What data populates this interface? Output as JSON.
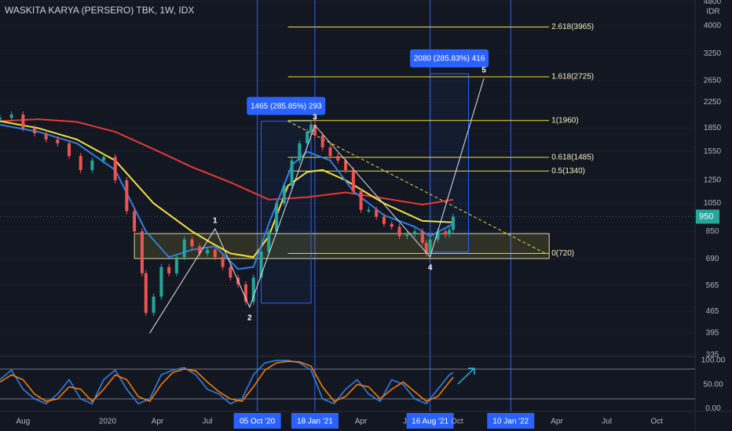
{
  "chart_data": {
    "type": "candlestick",
    "title": "WASKITA KARYA (PERSERO) TBK, 1W, IDX",
    "unit": "IDR",
    "log_scale": true,
    "xlim": [
      0,
      181
    ],
    "ylim": [
      331,
      4860
    ],
    "yticks": [
      4800,
      4000,
      3250,
      2650,
      2250,
      1850,
      1550,
      1250,
      1050,
      850,
      690,
      565,
      465,
      395,
      335
    ],
    "xticks": [
      {
        "value": 6,
        "label": "Aug"
      },
      {
        "value": 28,
        "label": "2020"
      },
      {
        "value": 41,
        "label": "Apr"
      },
      {
        "value": 54,
        "label": "Jul"
      },
      {
        "value": 67,
        "label": "05 Oct '20"
      },
      {
        "value": 82,
        "label": "18 Jan '21"
      },
      {
        "value": 94,
        "label": "Apr"
      },
      {
        "value": 106,
        "label": "Ju"
      },
      {
        "value": 112,
        "label": "16 Aug '21"
      },
      {
        "value": 119,
        "label": "Oct"
      },
      {
        "value": 133,
        "label": "10 Jan '22"
      },
      {
        "value": 145,
        "label": "Apr"
      },
      {
        "value": 158,
        "label": "Jul"
      },
      {
        "value": 171,
        "label": "Oct"
      }
    ],
    "vlines": [
      67,
      82,
      112,
      133
    ],
    "x": [
      0,
      3,
      6,
      9,
      12,
      15,
      18,
      21,
      24,
      27,
      30,
      33,
      35,
      37,
      38,
      40,
      42,
      44,
      46,
      48,
      50,
      52,
      54,
      56,
      58,
      60,
      62,
      64,
      66,
      68,
      70,
      72,
      74,
      76,
      78,
      80,
      81,
      82,
      84,
      86,
      88,
      90,
      92,
      94,
      96,
      98,
      100,
      102,
      104,
      106,
      108,
      110,
      111,
      112,
      114,
      116,
      117,
      118
    ],
    "values": [
      2000,
      2050,
      1850,
      1780,
      1700,
      1650,
      1500,
      1350,
      1450,
      1490,
      1250,
      990,
      850,
      620,
      460,
      520,
      650,
      620,
      700,
      800,
      760,
      720,
      740,
      700,
      650,
      600,
      570,
      500,
      600,
      730,
      850,
      1050,
      1200,
      1450,
      1650,
      1800,
      1900,
      1750,
      1600,
      1500,
      1450,
      1350,
      1150,
      1000,
      1000,
      950,
      900,
      880,
      820,
      830,
      850,
      780,
      720,
      800,
      850,
      830,
      860,
      950
    ],
    "up_color": "#26a69a",
    "down_color": "#ef5350",
    "moving_averages": [
      {
        "color": "#e53935",
        "x": [
          0,
          10,
          20,
          30,
          40,
          50,
          60,
          70,
          80,
          90,
          100,
          110,
          118
        ],
        "values": [
          1950,
          1980,
          1940,
          1800,
          1580,
          1380,
          1230,
          1080,
          1100,
          1140,
          1090,
          1040,
          1080
        ]
      },
      {
        "color": "#f5e042",
        "x": [
          0,
          10,
          20,
          30,
          40,
          50,
          55,
          60,
          66,
          70,
          75,
          80,
          84,
          90,
          100,
          110,
          118
        ],
        "values": [
          1950,
          1850,
          1700,
          1450,
          1050,
          850,
          780,
          720,
          700,
          820,
          1200,
          1330,
          1350,
          1250,
          1050,
          920,
          910
        ]
      },
      {
        "color": "#2f7fe6",
        "x": [
          0,
          10,
          20,
          30,
          38,
          44,
          50,
          56,
          62,
          66,
          70,
          76,
          80,
          86,
          92,
          100,
          108,
          112,
          118
        ],
        "values": [
          1900,
          1800,
          1650,
          1350,
          850,
          700,
          740,
          760,
          640,
          650,
          900,
          1400,
          1550,
          1450,
          1150,
          960,
          880,
          820,
          900
        ]
      }
    ],
    "last": {
      "value": 950,
      "label": "950"
    },
    "zone": {
      "x": [
        35,
        143
      ],
      "y": [
        693,
        836
      ]
    },
    "fib": [
      {
        "value": 3965,
        "label": "2.618(3965)"
      },
      {
        "value": 2725,
        "label": "1.618(2725)"
      },
      {
        "value": 1960,
        "label": "1(1960)"
      },
      {
        "value": 1485,
        "label": "0.618(1485)"
      },
      {
        "value": 1340,
        "label": "0.5(1340)"
      },
      {
        "value": 720,
        "label": "0(720)"
      }
    ],
    "fib_x": [
      75,
      143
    ],
    "trendline": {
      "x": [
        75,
        142
      ],
      "y": [
        1950,
        720
      ]
    },
    "wave": {
      "x": [
        39,
        56,
        65,
        82,
        112,
        126
      ],
      "y": [
        395,
        867,
        480,
        1890,
        701,
        2692
      ],
      "labels": [
        null,
        "1",
        "2",
        "3",
        "4",
        "5"
      ]
    },
    "measures": [
      {
        "label": "1465 (285.85%) 293",
        "x": [
          68,
          81
        ],
        "y": [
          495,
          1950
        ]
      },
      {
        "label": "2080 (285.83%) 416",
        "x": [
          112,
          122
        ],
        "y": [
          728,
          2790
        ]
      }
    ],
    "oscillator": {
      "ylim": [
        -6,
        108
      ],
      "yticks": [
        {
          "value": 100,
          "label": "100.00"
        },
        {
          "value": 50,
          "label": "50.00"
        },
        {
          "value": 0,
          "label": "0.00"
        }
      ],
      "bands": [
        82,
        20
      ],
      "x": [
        0,
        3,
        6,
        9,
        12,
        15,
        18,
        21,
        24,
        27,
        30,
        33,
        36,
        39,
        42,
        45,
        48,
        51,
        54,
        57,
        60,
        63,
        66,
        69,
        72,
        75,
        78,
        81,
        84,
        87,
        90,
        93,
        96,
        99,
        102,
        105,
        108,
        111,
        114,
        117,
        118
      ],
      "series": [
        {
          "color": "#2f7fe6",
          "values": [
            60,
            80,
            40,
            20,
            10,
            30,
            60,
            20,
            10,
            60,
            80,
            40,
            10,
            20,
            70,
            80,
            85,
            70,
            40,
            30,
            10,
            20,
            70,
            95,
            100,
            100,
            95,
            80,
            20,
            10,
            40,
            60,
            30,
            15,
            60,
            50,
            20,
            10,
            40,
            70,
            75
          ]
        },
        {
          "color": "#f57c00",
          "values": [
            55,
            70,
            60,
            30,
            15,
            20,
            45,
            40,
            15,
            40,
            70,
            60,
            25,
            15,
            50,
            75,
            82,
            78,
            55,
            35,
            20,
            15,
            45,
            80,
            95,
            98,
            97,
            88,
            45,
            15,
            25,
            50,
            45,
            20,
            40,
            55,
            35,
            15,
            25,
            55,
            65
          ]
        }
      ]
    }
  }
}
